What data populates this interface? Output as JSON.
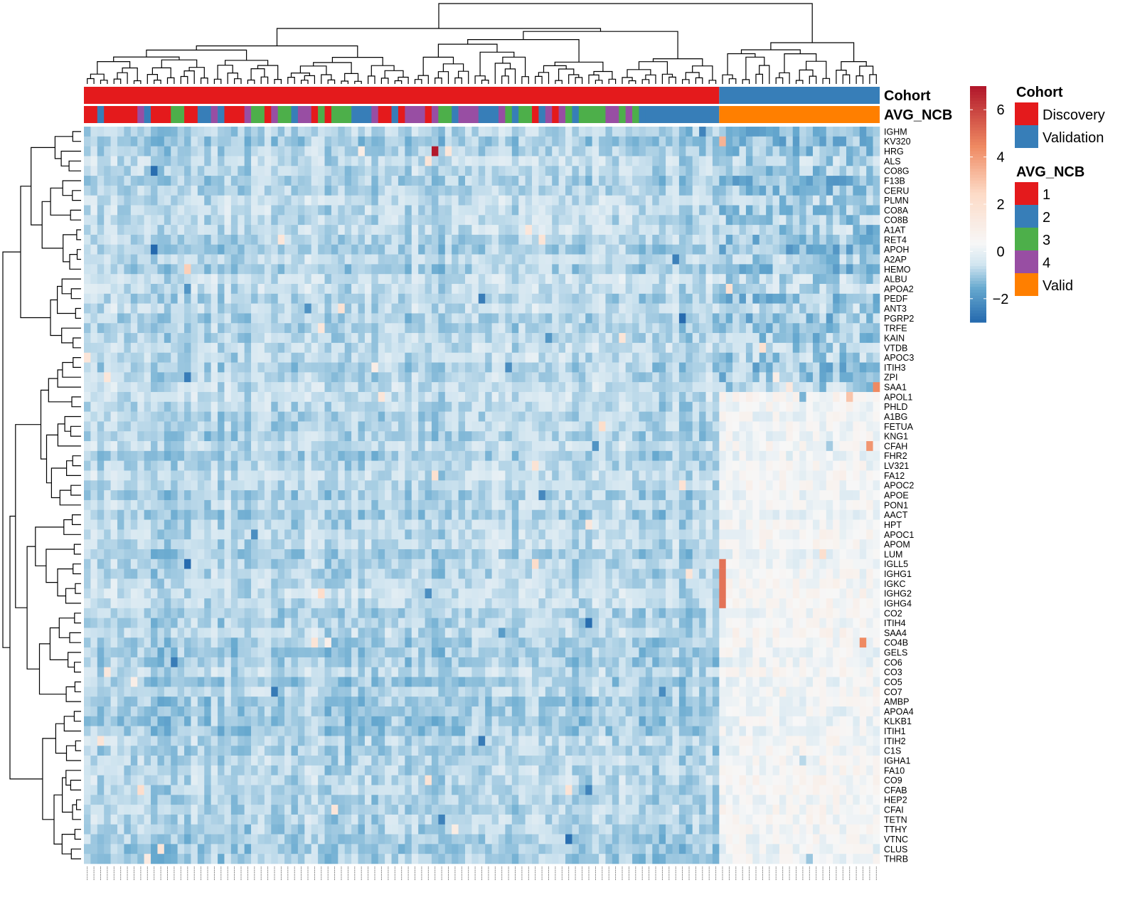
{
  "chart_data": {
    "type": "heatmap",
    "rows": [
      "IGHM",
      "KV320",
      "HRG",
      "ALS",
      "CO8G",
      "F13B",
      "CERU",
      "PLMN",
      "CO8A",
      "CO8B",
      "A1AT",
      "RET4",
      "APOH",
      "A2AP",
      "HEMO",
      "ALBU",
      "APOA2",
      "PEDF",
      "ANT3",
      "PGRP2",
      "TRFE",
      "KAIN",
      "VTDB",
      "APOC3",
      "ITIH3",
      "ZPI",
      "SAA1",
      "APOL1",
      "PHLD",
      "A1BG",
      "FETUA",
      "KNG1",
      "CFAH",
      "FHR2",
      "LV321",
      "FA12",
      "APOC2",
      "APOE",
      "PON1",
      "AACT",
      "HPT",
      "APOC1",
      "APOM",
      "LUM",
      "IGLL5",
      "IGHG1",
      "IGKC",
      "IGHG2",
      "IGHG4",
      "CO2",
      "ITIH4",
      "SAA4",
      "CO4B",
      "GELS",
      "CO6",
      "CO3",
      "CO5",
      "CO7",
      "AMBP",
      "APOA4",
      "KLKB1",
      "ITIH1",
      "ITIH2",
      "C1S",
      "IGHA1",
      "FA10",
      "CO9",
      "CFAB",
      "HEP2",
      "CFAI",
      "TETN",
      "TTHY",
      "VTNC",
      "CLUS",
      "THRB"
    ],
    "n_columns": 119,
    "discovery_columns": 95,
    "validation_columns": 24,
    "color_scale": {
      "min": -3,
      "max": 7,
      "ticks": [
        "6",
        "4",
        "2",
        "0",
        "−2"
      ],
      "tick_values": [
        6,
        4,
        2,
        0,
        -2
      ],
      "low_color": "#2166ac",
      "mid_color": "#f7f7f7",
      "high_color": "#b2182b"
    },
    "annotations": [
      {
        "name": "Cohort",
        "levels": [
          "Discovery",
          "Validation"
        ],
        "colors": [
          "#e41a1c",
          "#377eb8"
        ]
      },
      {
        "name": "AVG_NCB",
        "levels": [
          "1",
          "2",
          "3",
          "4",
          "Valid"
        ],
        "colors": [
          "#e41a1c",
          "#377eb8",
          "#4daf4a",
          "#984ea3",
          "#ff7f00"
        ]
      }
    ],
    "legend": {
      "cohort_title": "Cohort",
      "avg_title": "AVG_NCB"
    },
    "grid": false
  }
}
